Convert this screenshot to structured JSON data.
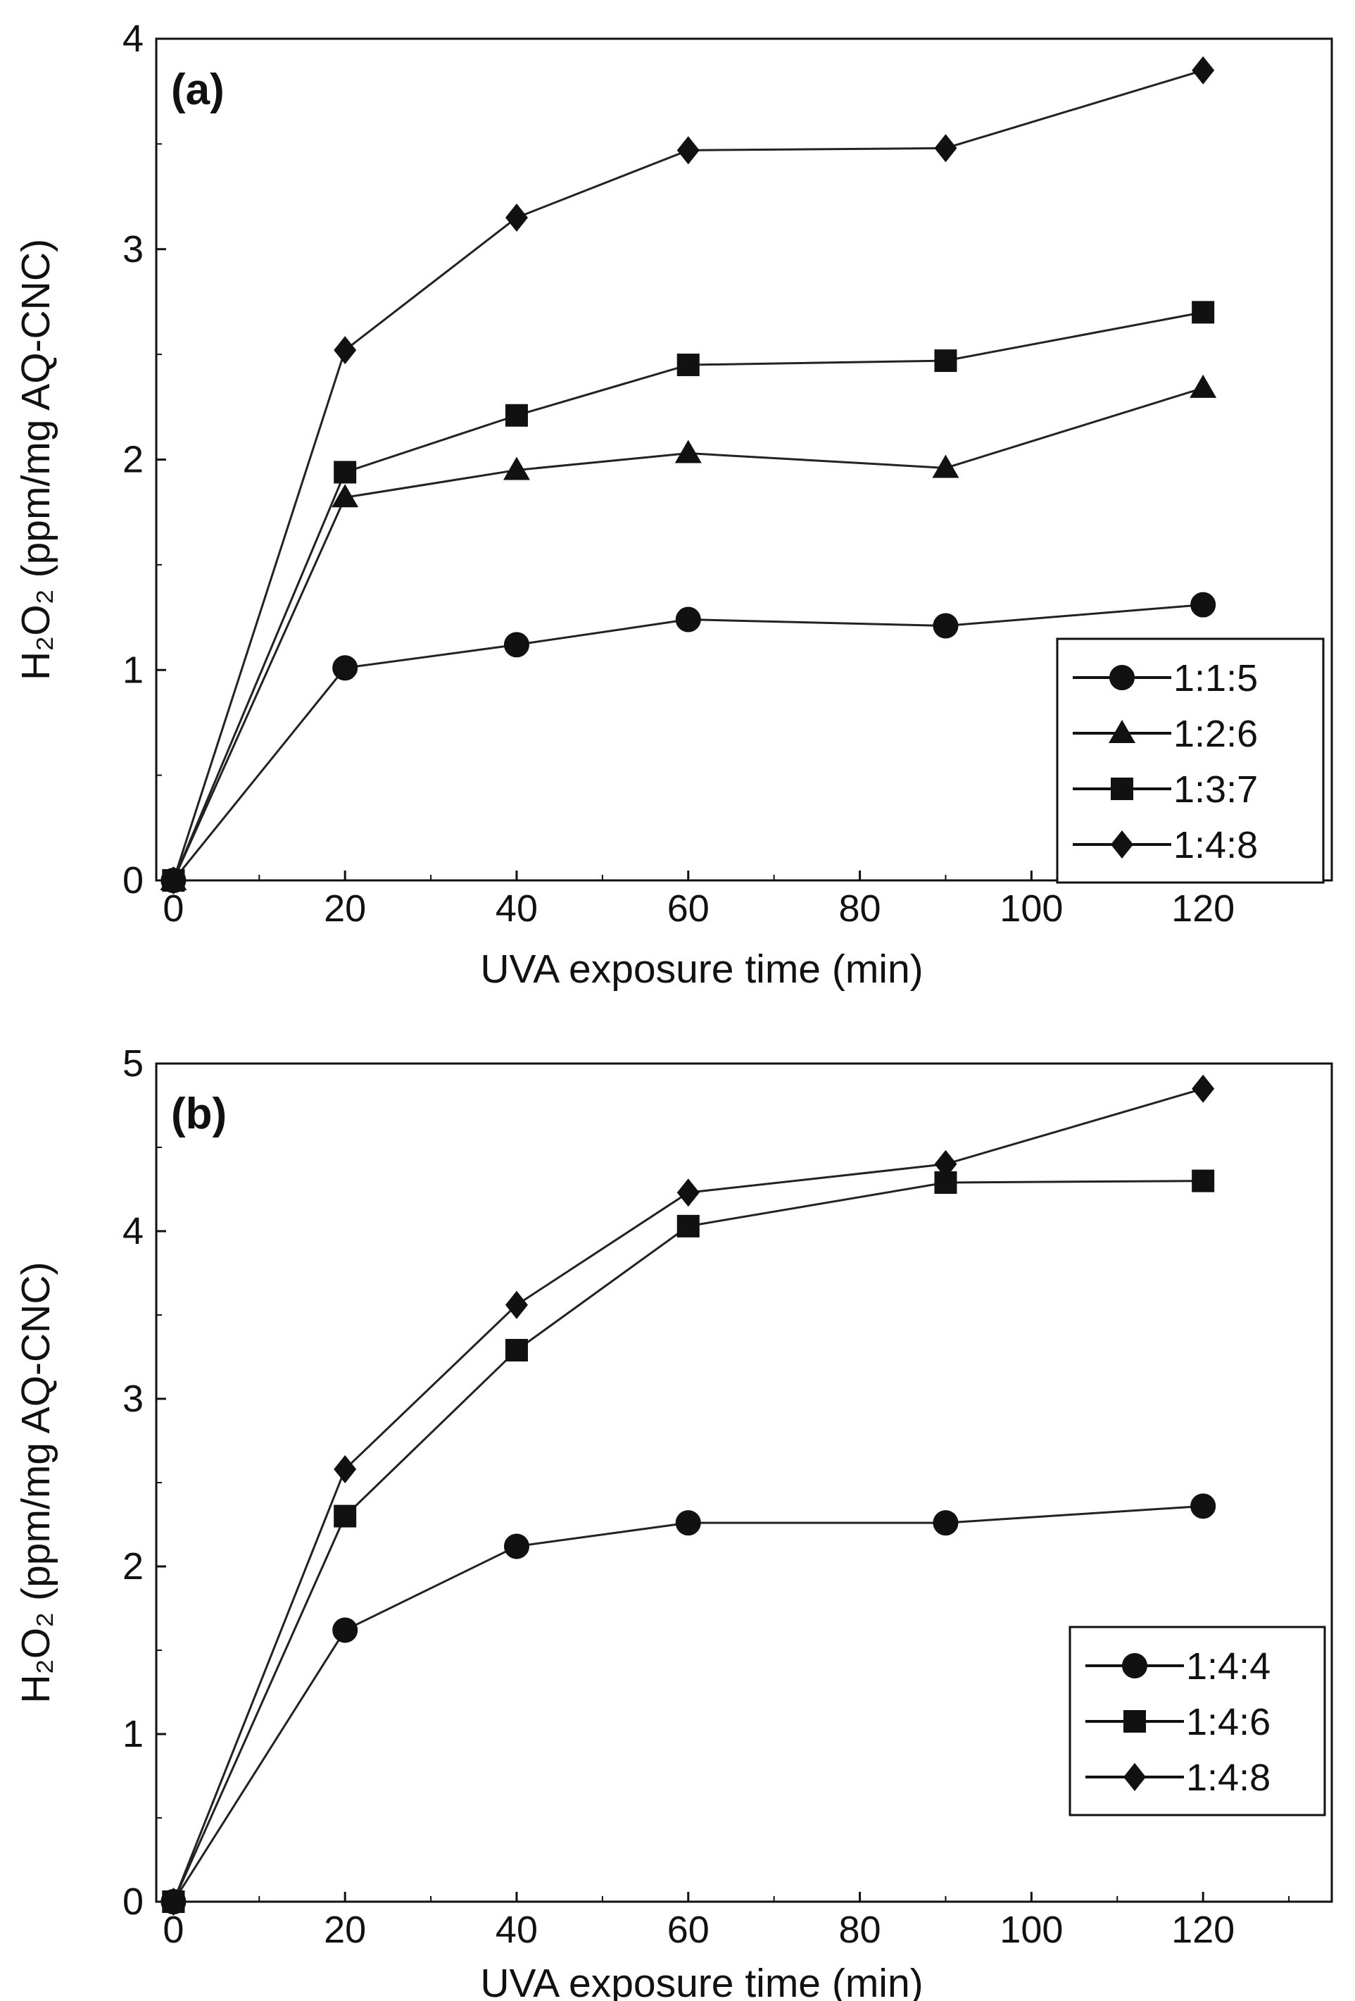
{
  "chart_data": [
    {
      "type": "line",
      "panel_label": "(a)",
      "xlabel": "UVA exposure time (min)",
      "ylabel": "H₂O₂ (ppm/mg AQ-CNC)",
      "xlim": [
        -2,
        135
      ],
      "ylim": [
        0,
        4
      ],
      "xticks": [
        0,
        20,
        40,
        60,
        80,
        100,
        120
      ],
      "yticks": [
        0,
        1,
        2,
        3,
        4
      ],
      "legend_position": "bottom-right",
      "x": [
        0,
        20,
        40,
        60,
        90,
        120
      ],
      "series": [
        {
          "name": "1:1:5",
          "marker": "circle",
          "values": [
            0,
            1.01,
            1.12,
            1.24,
            1.21,
            1.31
          ]
        },
        {
          "name": "1:2:6",
          "marker": "triangle",
          "values": [
            0,
            1.82,
            1.95,
            2.03,
            1.96,
            2.34
          ]
        },
        {
          "name": "1:3:7",
          "marker": "square",
          "values": [
            0,
            1.94,
            2.21,
            2.45,
            2.47,
            2.7
          ]
        },
        {
          "name": "1:4:8",
          "marker": "diamond",
          "values": [
            0,
            2.52,
            3.15,
            3.47,
            3.48,
            3.85
          ]
        }
      ]
    },
    {
      "type": "line",
      "panel_label": "(b)",
      "xlabel": "UVA exposure time (min)",
      "ylabel": "H₂O₂ (ppm/mg AQ-CNC)",
      "xlim": [
        -2,
        135
      ],
      "ylim": [
        0,
        5
      ],
      "xticks": [
        0,
        20,
        40,
        60,
        80,
        100,
        120
      ],
      "yticks": [
        0,
        1,
        2,
        3,
        4,
        5
      ],
      "legend_position": "bottom-right",
      "x": [
        0,
        20,
        40,
        60,
        90,
        120
      ],
      "series": [
        {
          "name": "1:4:4",
          "marker": "circle",
          "values": [
            0,
            1.62,
            2.12,
            2.26,
            2.26,
            2.36
          ]
        },
        {
          "name": "1:4:6",
          "marker": "square",
          "values": [
            0,
            2.3,
            3.29,
            4.03,
            4.29,
            4.3
          ]
        },
        {
          "name": "1:4:8",
          "marker": "diamond",
          "values": [
            0,
            2.58,
            3.56,
            4.23,
            4.4,
            4.85
          ]
        }
      ]
    }
  ]
}
